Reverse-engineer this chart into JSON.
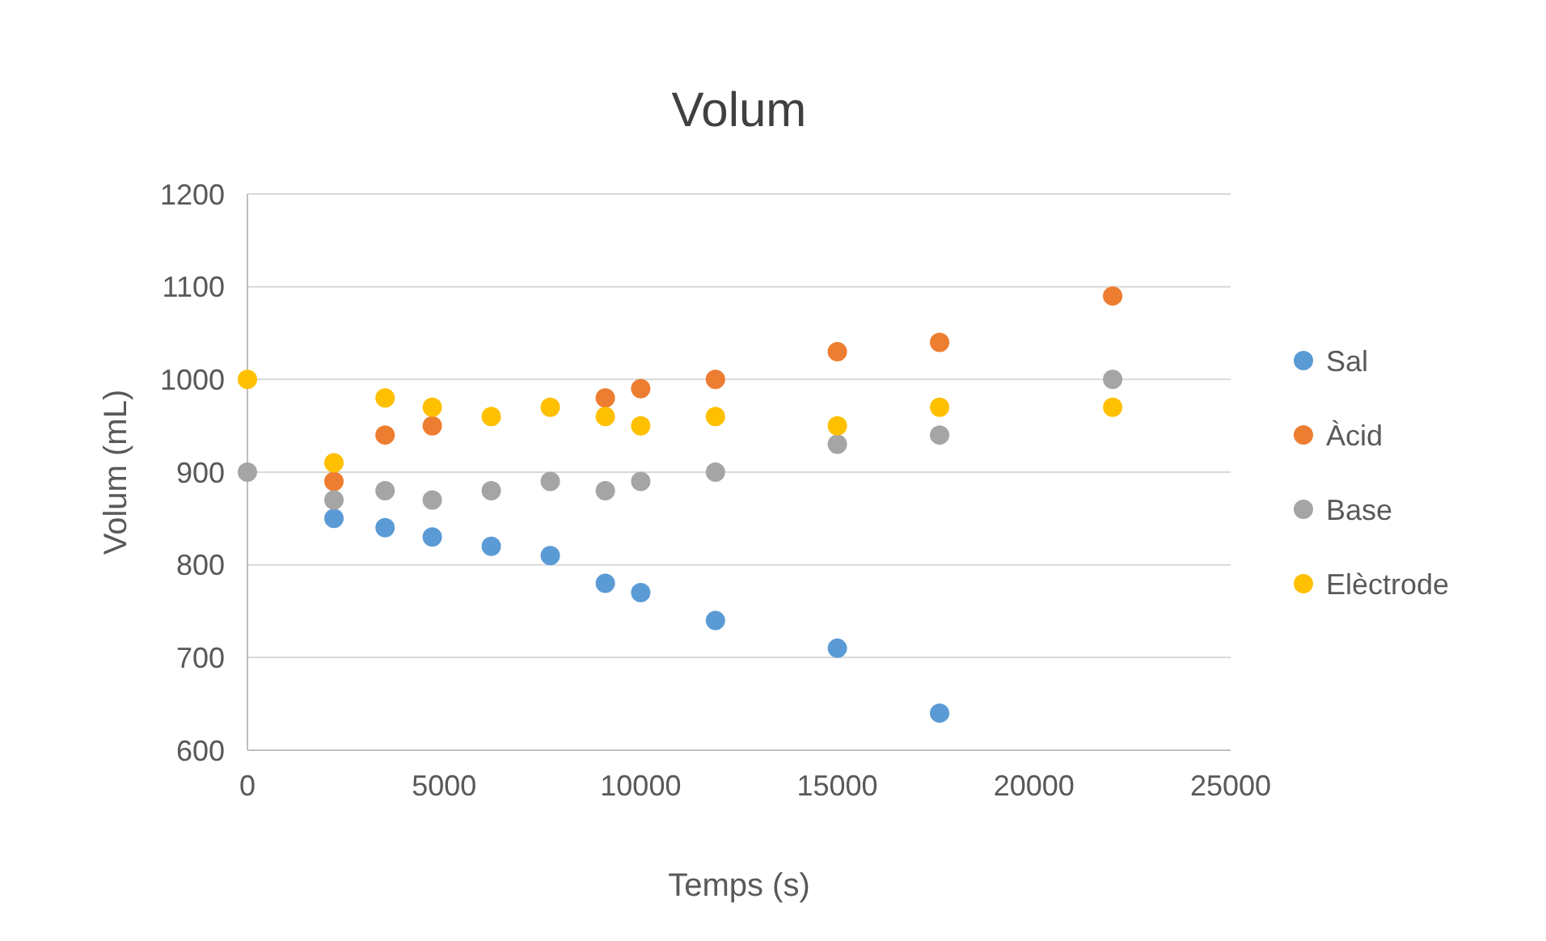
{
  "chart_data": {
    "type": "scatter",
    "title": "Volum",
    "xlabel": "Temps (s)",
    "ylabel": "Volum (mL)",
    "x": [
      0,
      2200,
      3500,
      4700,
      6200,
      7700,
      9100,
      10000,
      11900,
      15000,
      17600,
      22000
    ],
    "series": [
      {
        "name": "Sal",
        "color": "#5b9bd5",
        "values": [
          null,
          850,
          840,
          830,
          820,
          810,
          780,
          770,
          740,
          710,
          640,
          null
        ]
      },
      {
        "name": "Àcid",
        "color": "#ed7d31",
        "values": [
          null,
          890,
          940,
          950,
          null,
          null,
          980,
          990,
          1000,
          1030,
          1040,
          1090
        ]
      },
      {
        "name": "Base",
        "color": "#a5a5a5",
        "values": [
          900,
          870,
          880,
          870,
          880,
          890,
          880,
          890,
          900,
          930,
          940,
          1000
        ]
      },
      {
        "name": "Elèctrode",
        "color": "#ffc000",
        "values": [
          1000,
          910,
          980,
          970,
          960,
          970,
          960,
          950,
          960,
          950,
          970,
          970
        ]
      }
    ],
    "xlim": [
      0,
      25000
    ],
    "xticks": [
      0,
      5000,
      10000,
      15000,
      20000,
      25000
    ],
    "ylim": [
      600,
      1200
    ],
    "yticks": [
      600,
      700,
      800,
      900,
      1000,
      1100,
      1200
    ],
    "grid": "y",
    "legend": "right",
    "marker": "circle"
  }
}
